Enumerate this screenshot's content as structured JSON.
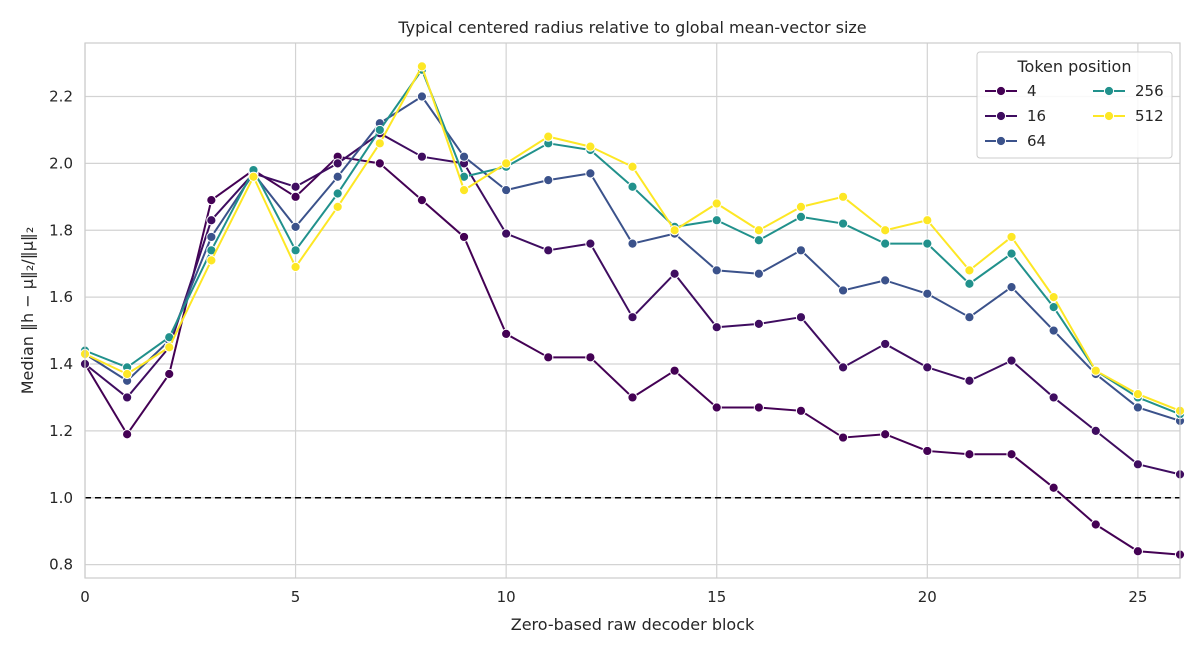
{
  "chart_data": {
    "type": "line",
    "title": "Typical centered radius relative to global mean-vector size",
    "xlabel": "Zero-based raw decoder block",
    "ylabel": "Median ‖h − μ‖₂/‖μ‖₂",
    "xlim": [
      0,
      26
    ],
    "ylim": [
      0.76,
      2.36
    ],
    "xticks": [
      0,
      5,
      10,
      15,
      20,
      25
    ],
    "xtick_labels": [
      "0",
      "5",
      "10",
      "15",
      "20",
      "25"
    ],
    "yticks": [
      0.8,
      1.0,
      1.2,
      1.4,
      1.6,
      1.8,
      2.0,
      2.2
    ],
    "ytick_labels": [
      "0.8",
      "1.0",
      "1.2",
      "1.4",
      "1.6",
      "1.8",
      "2.0",
      "2.2"
    ],
    "grid": true,
    "reference_line": {
      "y": 1.0,
      "style": "dashed",
      "color": "#000000"
    },
    "legend": {
      "title": "Token position",
      "placement": "top-right",
      "columns": 2
    },
    "x": [
      0,
      1,
      2,
      3,
      4,
      5,
      6,
      7,
      8,
      9,
      10,
      11,
      12,
      13,
      14,
      15,
      16,
      17,
      18,
      19,
      20,
      21,
      22,
      23,
      24,
      25,
      26
    ],
    "series": [
      {
        "name": "4",
        "color": "#440154",
        "values": [
          1.4,
          1.19,
          1.37,
          1.89,
          1.98,
          1.9,
          2.02,
          2.0,
          1.89,
          1.78,
          1.49,
          1.42,
          1.42,
          1.3,
          1.38,
          1.27,
          1.27,
          1.26,
          1.18,
          1.19,
          1.14,
          1.13,
          1.13,
          1.03,
          0.92,
          0.84,
          0.83
        ]
      },
      {
        "name": "16",
        "color": "#3f0d60",
        "values": [
          1.4,
          1.3,
          1.45,
          1.83,
          1.97,
          1.93,
          2.0,
          2.09,
          2.02,
          2.0,
          1.79,
          1.74,
          1.76,
          1.54,
          1.67,
          1.51,
          1.52,
          1.54,
          1.39,
          1.46,
          1.39,
          1.35,
          1.41,
          1.3,
          1.2,
          1.1,
          1.07
        ]
      },
      {
        "name": "64",
        "color": "#3b528b",
        "values": [
          1.43,
          1.35,
          1.47,
          1.78,
          1.97,
          1.81,
          1.96,
          2.12,
          2.2,
          2.02,
          1.92,
          1.95,
          1.97,
          1.76,
          1.79,
          1.68,
          1.67,
          1.74,
          1.62,
          1.65,
          1.61,
          1.54,
          1.63,
          1.5,
          1.37,
          1.27,
          1.23
        ]
      },
      {
        "name": "256",
        "color": "#21918c",
        "values": [
          1.44,
          1.39,
          1.48,
          1.74,
          1.98,
          1.74,
          1.91,
          2.1,
          2.28,
          1.96,
          1.99,
          2.06,
          2.04,
          1.93,
          1.81,
          1.83,
          1.77,
          1.84,
          1.82,
          1.76,
          1.76,
          1.64,
          1.73,
          1.57,
          1.38,
          1.3,
          1.25
        ]
      },
      {
        "name": "512",
        "color": "#fde725",
        "values": [
          1.43,
          1.37,
          1.45,
          1.71,
          1.96,
          1.69,
          1.87,
          2.06,
          2.29,
          1.92,
          2.0,
          2.08,
          2.05,
          1.99,
          1.8,
          1.88,
          1.8,
          1.87,
          1.9,
          1.8,
          1.83,
          1.68,
          1.78,
          1.6,
          1.38,
          1.31,
          1.26
        ]
      }
    ]
  }
}
